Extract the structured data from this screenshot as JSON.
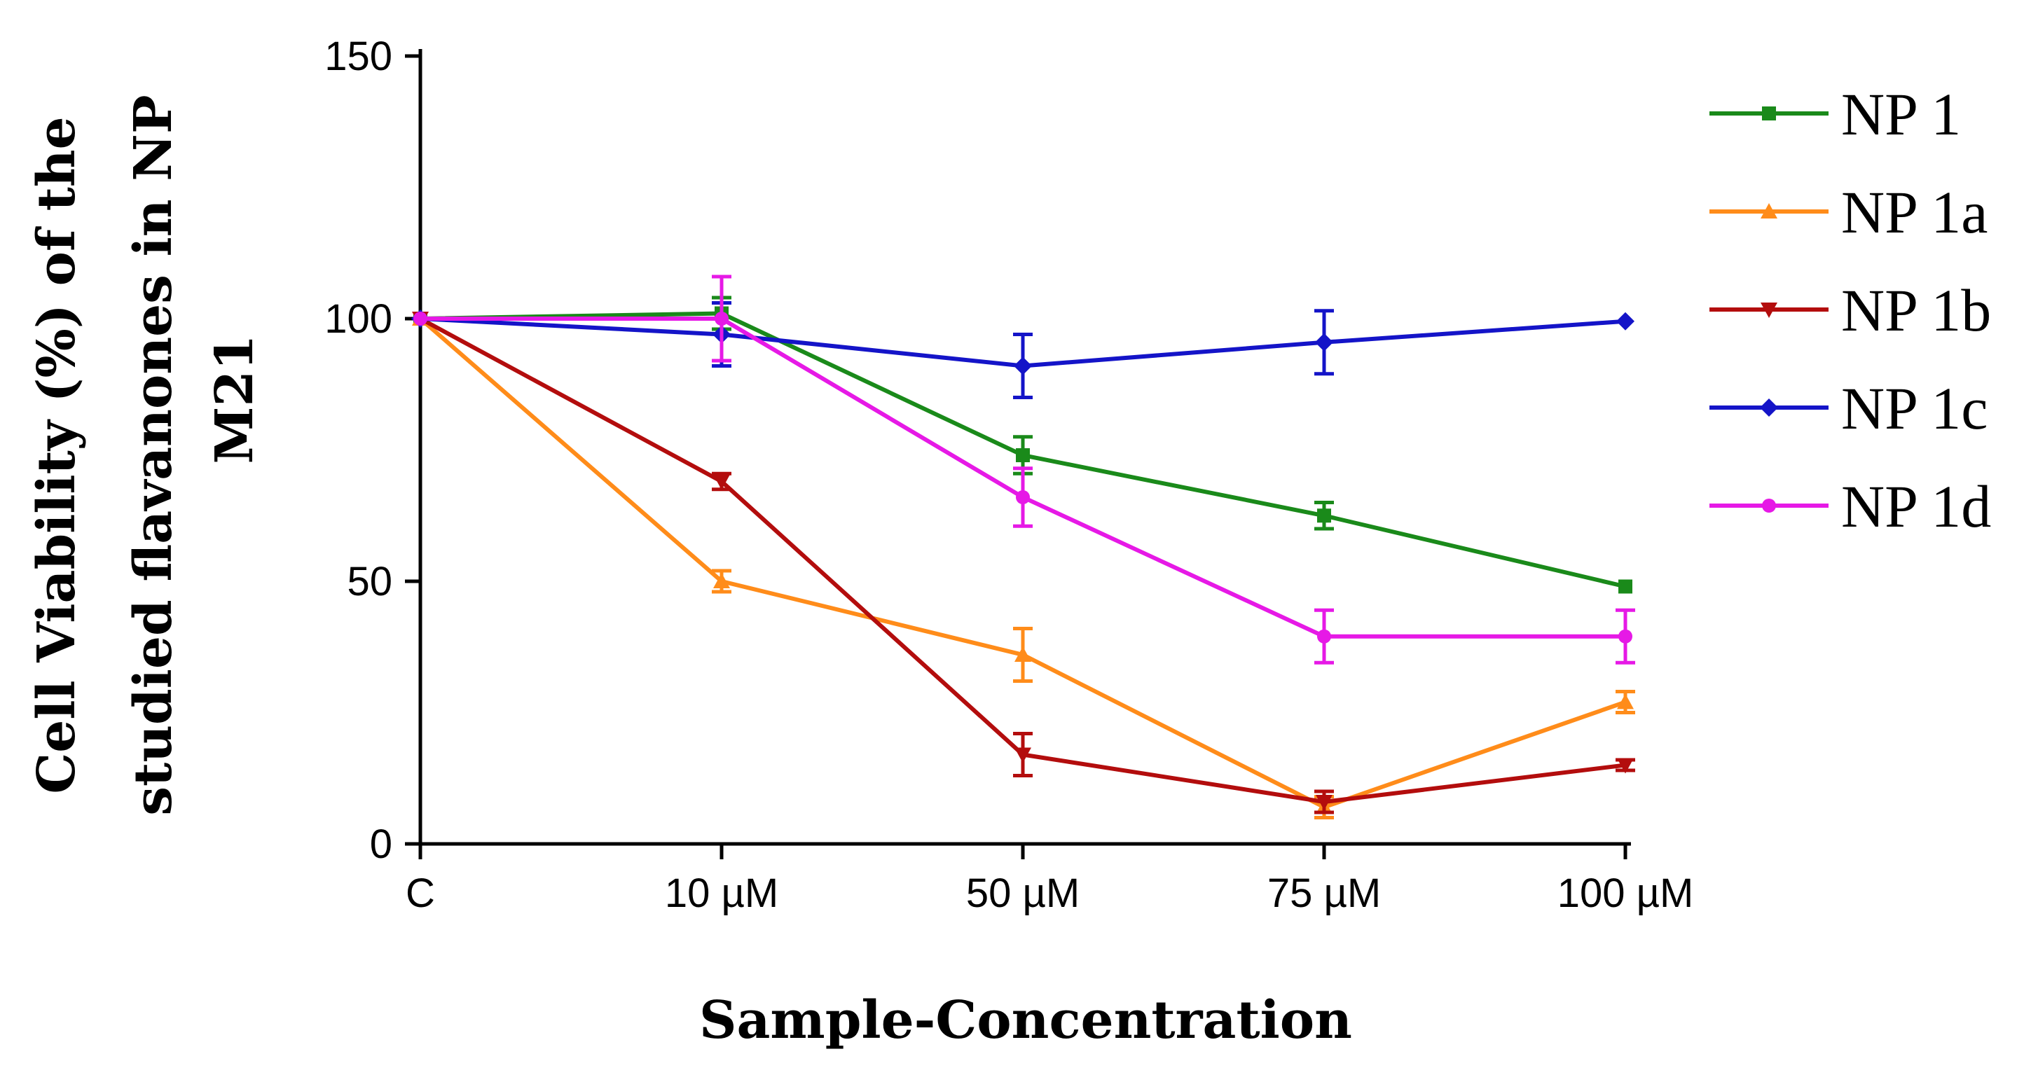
{
  "chart_data": {
    "type": "line",
    "title": "",
    "categories": [
      "C",
      "10 µM",
      "50 µM",
      "75 µM",
      "100 µM"
    ],
    "xlabel": "Sample-Concentration",
    "ylabel_lines": [
      "Cell Viability (%) of the",
      "studied flavanones in NP",
      "M21"
    ],
    "ylim": [
      0,
      150
    ],
    "yticks": [
      0,
      50,
      100,
      150
    ],
    "grid": false,
    "legend_position": "top-right",
    "series": [
      {
        "name": "NP 1",
        "color": "#1a8a1a",
        "marker": "square",
        "values": [
          100,
          101,
          74,
          62.5,
          49
        ],
        "errors": [
          0,
          3,
          3.5,
          2.5,
          0
        ]
      },
      {
        "name": "NP 1a",
        "color": "#ff8c1a",
        "marker": "triangle-up",
        "values": [
          100,
          50,
          36,
          7,
          27
        ],
        "errors": [
          0,
          2,
          5,
          2,
          2
        ]
      },
      {
        "name": "NP 1b",
        "color": "#b30d0d",
        "marker": "triangle-down",
        "values": [
          100,
          69,
          17,
          8,
          15
        ],
        "errors": [
          0,
          1.5,
          4,
          2,
          1
        ]
      },
      {
        "name": "NP 1c",
        "color": "#1414c8",
        "marker": "diamond",
        "values": [
          100,
          97,
          91,
          95.5,
          99.5
        ],
        "errors": [
          0,
          6,
          6,
          6,
          0
        ]
      },
      {
        "name": "NP 1d",
        "color": "#e619e6",
        "marker": "circle",
        "values": [
          100,
          100,
          66,
          39.5,
          39.5
        ],
        "errors": [
          0,
          8,
          5.5,
          5,
          5
        ]
      }
    ]
  }
}
